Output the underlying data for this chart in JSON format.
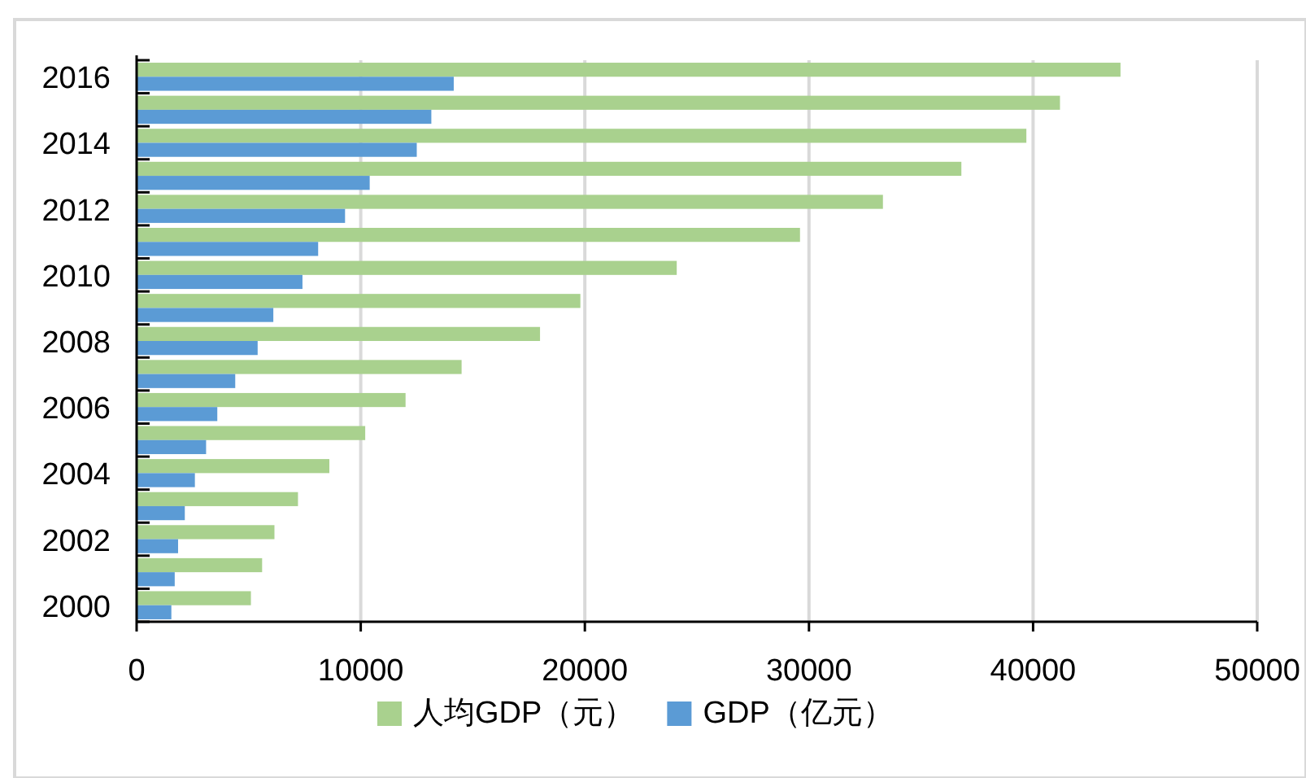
{
  "chart_data": {
    "type": "bar",
    "orientation": "horizontal",
    "categories": [
      "2016",
      null,
      "2014",
      null,
      "2012",
      null,
      "2010",
      null,
      "2008",
      null,
      "2006",
      null,
      "2004",
      null,
      "2002",
      null,
      "2000"
    ],
    "series": [
      {
        "name": "人均GDP（元）",
        "color": "#a9d18e",
        "values": [
          43900,
          41200,
          39700,
          36800,
          33300,
          29600,
          24100,
          19800,
          18000,
          14500,
          12000,
          10200,
          8600,
          7200,
          6150,
          5600,
          5100
        ]
      },
      {
        "name": "GDP（亿元）",
        "color": "#5b9bd5",
        "values": [
          14150,
          13150,
          12500,
          10400,
          9300,
          8100,
          7400,
          6100,
          5400,
          4400,
          3600,
          3100,
          2600,
          2150,
          1850,
          1700,
          1550
        ]
      }
    ],
    "xlim": [
      0,
      50000
    ],
    "xticks": [
      0,
      10000,
      20000,
      30000,
      40000,
      50000
    ],
    "grid": "x",
    "legend": "bottom"
  }
}
